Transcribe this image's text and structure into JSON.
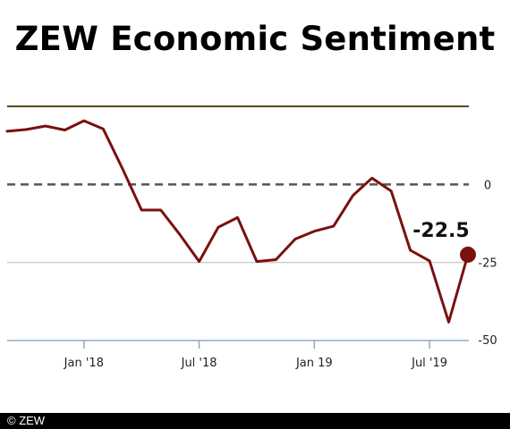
{
  "title": "ZEW Economic Sentiment",
  "copyright": "© ZEW",
  "chart_data": {
    "type": "line",
    "title": "ZEW Economic Sentiment",
    "x": [
      "2017-09",
      "2017-10",
      "2017-11",
      "2017-12",
      "2018-01",
      "2018-02",
      "2018-03",
      "2018-04",
      "2018-05",
      "2018-06",
      "2018-07",
      "2018-08",
      "2018-09",
      "2018-10",
      "2018-11",
      "2018-12",
      "2019-01",
      "2019-02",
      "2019-03",
      "2019-04",
      "2019-05",
      "2019-06",
      "2019-07",
      "2019-08",
      "2019-09"
    ],
    "series": [
      {
        "values": [
          17.0,
          17.6,
          18.7,
          17.4,
          20.4,
          17.8,
          5.1,
          -8.2,
          -8.2,
          -16.1,
          -24.7,
          -13.7,
          -10.6,
          -24.7,
          -24.1,
          -17.5,
          -15.0,
          -13.4,
          -3.6,
          2.0,
          -2.1,
          -21.1,
          -24.5,
          -44.1,
          -22.5
        ]
      }
    ],
    "ylim": [
      -50,
      25
    ],
    "yticks": [
      0,
      -25,
      -50
    ],
    "ytick_labels": [
      "0",
      "-25",
      "-50"
    ],
    "xticks": [
      {
        "x": "2018-01",
        "label": "Jan '18"
      },
      {
        "x": "2018-07",
        "label": "Jul '18"
      },
      {
        "x": "2019-01",
        "label": "Jan 19"
      },
      {
        "x": "2019-07",
        "label": "Jul '19"
      }
    ],
    "zero_line": "dashed",
    "reference_line": {
      "y": 25,
      "color": "#5c4a1e"
    },
    "last_value_label": "-22.5",
    "colors": {
      "line": "#7a1010",
      "marker": "#7a1010",
      "zero": "#555555",
      "grid": "#cfcfcf",
      "axis": "#8faacc"
    }
  }
}
